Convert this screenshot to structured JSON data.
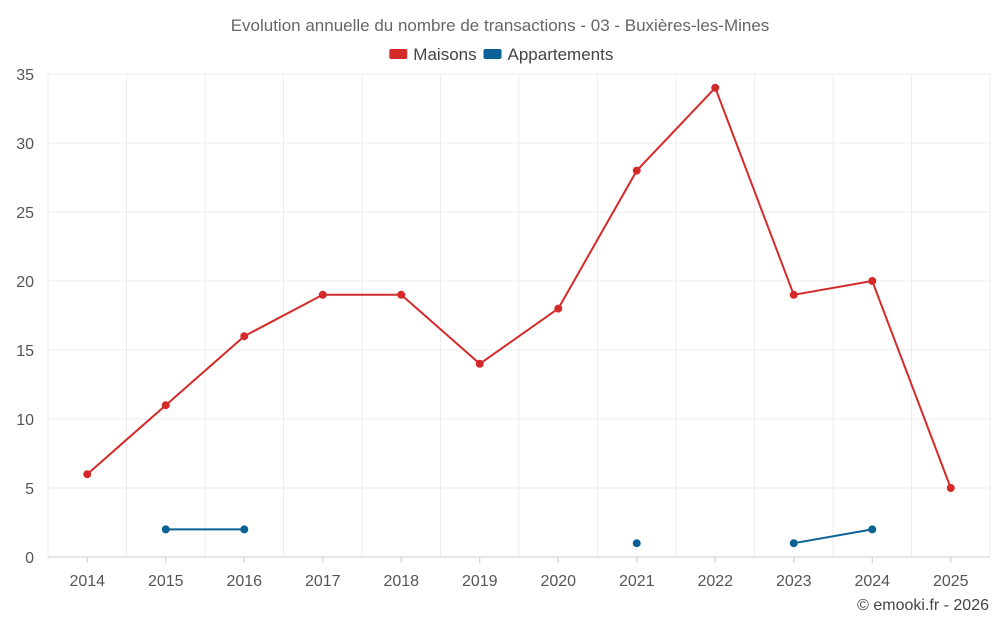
{
  "chart_data": {
    "type": "line",
    "title": "Evolution annuelle du nombre de transactions - 03 - Buxières-les-Mines",
    "categories": [
      "2014",
      "2015",
      "2016",
      "2017",
      "2018",
      "2019",
      "2020",
      "2021",
      "2022",
      "2023",
      "2024",
      "2025"
    ],
    "series": [
      {
        "name": "Maisons",
        "color": "#d42a2a",
        "values": [
          6,
          11,
          16,
          19,
          19,
          14,
          18,
          28,
          34,
          19,
          20,
          5
        ]
      },
      {
        "name": "Appartements",
        "color": "#0b6195",
        "values": [
          null,
          2,
          2,
          null,
          null,
          null,
          null,
          1,
          null,
          1,
          2,
          null
        ]
      }
    ],
    "yticks": [
      "0",
      "5",
      "10",
      "15",
      "20",
      "25",
      "30",
      "35"
    ],
    "ylim": [
      0,
      35
    ],
    "grid": true,
    "legend_position": "top-center",
    "xlabel": "",
    "ylabel": ""
  },
  "footer": {
    "credit": "© emooki.fr - 2026"
  }
}
